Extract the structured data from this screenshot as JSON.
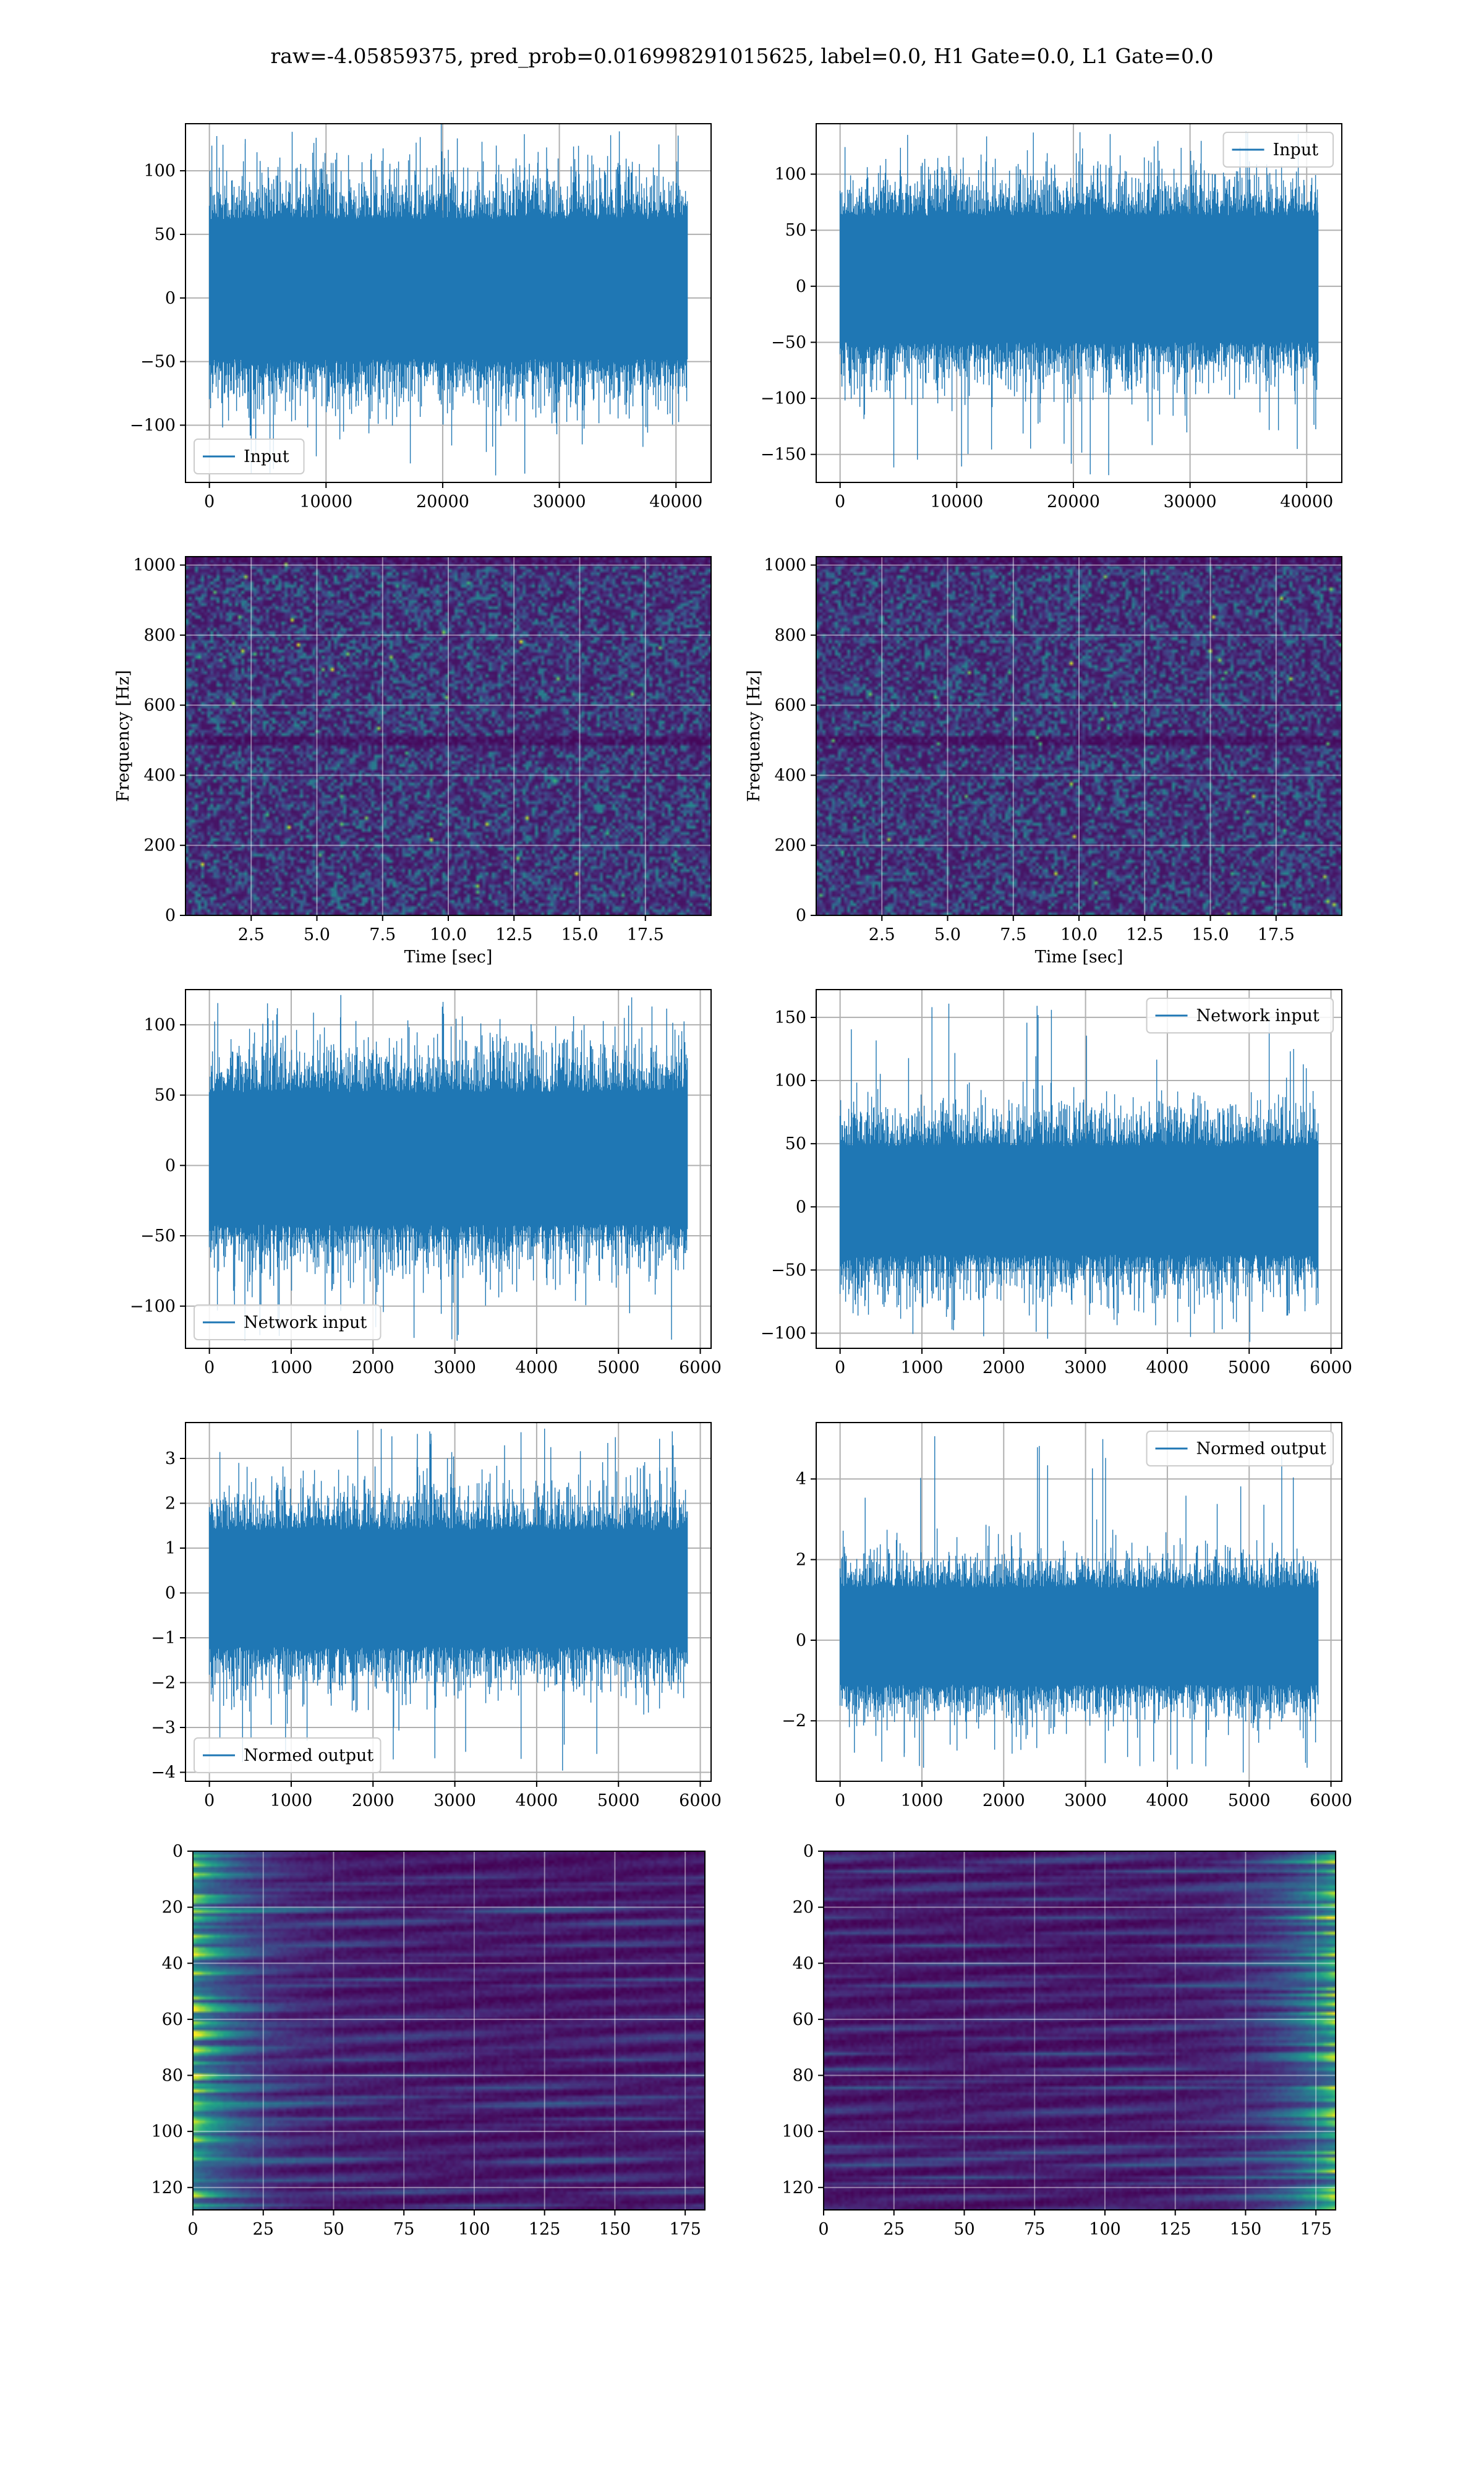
{
  "figure": {
    "suptitle": "raw=-4.05859375, pred_prob=0.016998291015625, label=0.0, H1 Gate=0.0, L1 Gate=0.0"
  },
  "chart_data": [
    {
      "id": "h1_input",
      "type": "line",
      "legend": "Input",
      "legend_loc": "lower-left",
      "n": 40960,
      "xlim": [
        -2048,
        43008
      ],
      "ylim": [
        -145,
        137
      ],
      "xticks": [
        0,
        10000,
        20000,
        30000,
        40000
      ],
      "yticks": [
        -100,
        -50,
        0,
        50,
        100
      ],
      "band": {
        "lo": -48,
        "hi": 62
      },
      "noise_sigma": 22,
      "color": "#1f77b4",
      "grid": true
    },
    {
      "id": "l1_input",
      "type": "line",
      "legend": "Input",
      "legend_loc": "upper-right",
      "n": 40960,
      "xlim": [
        -2048,
        43008
      ],
      "ylim": [
        -175,
        145
      ],
      "xticks": [
        0,
        10000,
        20000,
        30000,
        40000
      ],
      "yticks": [
        -150,
        -100,
        -50,
        0,
        50,
        100
      ],
      "band": {
        "lo": -50,
        "hi": 63
      },
      "noise_sigma": 23,
      "color": "#1f77b4",
      "grid": true
    },
    {
      "id": "h1_spec",
      "type": "heatmap",
      "xlabel": "Time [sec]",
      "ylabel": "Frequency [Hz]",
      "xlim": [
        0,
        20
      ],
      "ylim": [
        0,
        1024
      ],
      "xticks": [
        2.5,
        5.0,
        7.5,
        10.0,
        12.5,
        15.0,
        17.5
      ],
      "yticks": [
        0,
        200,
        400,
        600,
        800,
        1000
      ],
      "colormap": "viridis",
      "grid": true
    },
    {
      "id": "l1_spec",
      "type": "heatmap",
      "xlabel": "Time [sec]",
      "ylabel": "Frequency [Hz]",
      "xlim": [
        0,
        20
      ],
      "ylim": [
        0,
        1024
      ],
      "xticks": [
        2.5,
        5.0,
        7.5,
        10.0,
        12.5,
        15.0,
        17.5
      ],
      "yticks": [
        0,
        200,
        400,
        600,
        800,
        1000
      ],
      "colormap": "viridis",
      "grid": true
    },
    {
      "id": "h1_network",
      "type": "line",
      "legend": "Network input",
      "legend_loc": "lower-left",
      "n": 5840,
      "xlim": [
        -292,
        6132
      ],
      "ylim": [
        -130,
        125
      ],
      "xticks": [
        0,
        1000,
        2000,
        3000,
        4000,
        5000,
        6000
      ],
      "yticks": [
        -100,
        -50,
        0,
        50,
        100
      ],
      "band": {
        "lo": -42,
        "hi": 52
      },
      "noise_sigma": 20,
      "color": "#1f77b4",
      "grid": true
    },
    {
      "id": "l1_network",
      "type": "line",
      "legend": "Network input",
      "legend_loc": "upper-right",
      "n": 5840,
      "xlim": [
        -292,
        6132
      ],
      "ylim": [
        -112,
        172
      ],
      "xticks": [
        0,
        1000,
        2000,
        3000,
        4000,
        5000,
        6000
      ],
      "yticks": [
        -100,
        -50,
        0,
        50,
        100,
        150
      ],
      "band": {
        "lo": -38,
        "hi": 48
      },
      "noise_sigma": 19,
      "color": "#1f77b4",
      "grid": true
    },
    {
      "id": "h1_normed",
      "type": "line",
      "legend": "Normed output",
      "legend_loc": "lower-left",
      "n": 5840,
      "xlim": [
        -292,
        6132
      ],
      "ylim": [
        -4.2,
        3.8
      ],
      "xticks": [
        0,
        1000,
        2000,
        3000,
        4000,
        5000,
        6000
      ],
      "yticks": [
        -4,
        -3,
        -2,
        -1,
        0,
        1,
        2,
        3
      ],
      "band": {
        "lo": -1.2,
        "hi": 1.4
      },
      "noise_sigma": 0.55,
      "color": "#1f77b4",
      "grid": true
    },
    {
      "id": "l1_normed",
      "type": "line",
      "legend": "Normed output",
      "legend_loc": "upper-right",
      "n": 5840,
      "xlim": [
        -292,
        6132
      ],
      "ylim": [
        -3.5,
        5.4
      ],
      "xticks": [
        0,
        1000,
        2000,
        3000,
        4000,
        5000,
        6000
      ],
      "yticks": [
        -2,
        0,
        2,
        4
      ],
      "band": {
        "lo": -1.1,
        "hi": 1.3
      },
      "noise_sigma": 0.5,
      "color": "#1f77b4",
      "grid": true
    },
    {
      "id": "h1_features",
      "type": "heatmap",
      "xlim": [
        0,
        182
      ],
      "ylim": [
        128,
        0
      ],
      "xticks": [
        0,
        25,
        50,
        75,
        100,
        125,
        150,
        175
      ],
      "yticks": [
        0,
        20,
        40,
        60,
        80,
        100,
        120
      ],
      "colormap": "viridis",
      "grid": true,
      "energy_side": "left"
    },
    {
      "id": "l1_features",
      "type": "heatmap",
      "xlim": [
        0,
        182
      ],
      "ylim": [
        128,
        0
      ],
      "xticks": [
        0,
        25,
        50,
        75,
        100,
        125,
        150,
        175
      ],
      "yticks": [
        0,
        20,
        40,
        60,
        80,
        100,
        120
      ],
      "colormap": "viridis",
      "grid": true,
      "energy_side": "right"
    }
  ]
}
